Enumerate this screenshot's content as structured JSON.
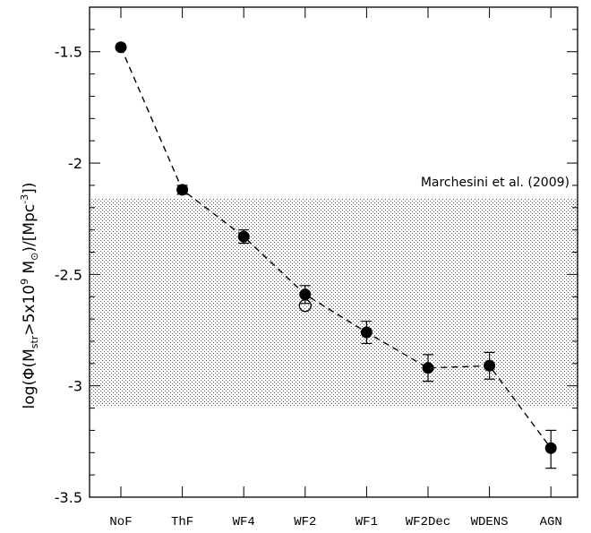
{
  "chart_data": {
    "type": "scatter",
    "title": "",
    "xlabel": "",
    "ylabel": "log(Φ(M_str>5x10^9 M_⊙)/[Mpc^-3])",
    "ylabel_parts": {
      "pre": "log(Φ(M",
      "sub1": "str",
      "mid": ">5x10",
      "sup1": "9",
      "mid2": " M",
      "sub2": "⊙",
      "mid3": ")/[Mpc",
      "sup2": "-3",
      "post": "])"
    },
    "ylim": [
      -3.5,
      -1.3
    ],
    "yticks": [
      -1.5,
      -2,
      -2.5,
      -3,
      -3.5
    ],
    "ytick_labels": [
      "-1.5",
      "-2",
      "-2.5",
      "-3",
      "-3.5"
    ],
    "categories": [
      "NoF",
      "ThF",
      "WF4",
      "WF2",
      "WF1",
      "WF2Dec",
      "WDENS",
      "AGN"
    ],
    "series": [
      {
        "style": "filled-circle",
        "values": [
          -1.48,
          -2.12,
          -2.33,
          -2.59,
          -2.76,
          -2.92,
          -2.91,
          -3.28
        ],
        "err_low": [
          0.01,
          0.02,
          0.03,
          0.04,
          0.05,
          0.06,
          0.06,
          0.09
        ],
        "err_high": [
          0.01,
          0.02,
          0.03,
          0.04,
          0.05,
          0.06,
          0.06,
          0.08
        ]
      },
      {
        "style": "open-circle",
        "points": [
          {
            "category": "WF2",
            "value": -2.64
          }
        ]
      }
    ],
    "connector": "dashed",
    "band": {
      "label": "Marchesini et al. (2009)",
      "y_range": [
        -3.09,
        -2.16
      ],
      "pattern": "dotted-hatch"
    },
    "grid": false,
    "legend": "none"
  },
  "colors": {
    "ink": "#000000",
    "band": "#555555",
    "background": "#ffffff"
  }
}
